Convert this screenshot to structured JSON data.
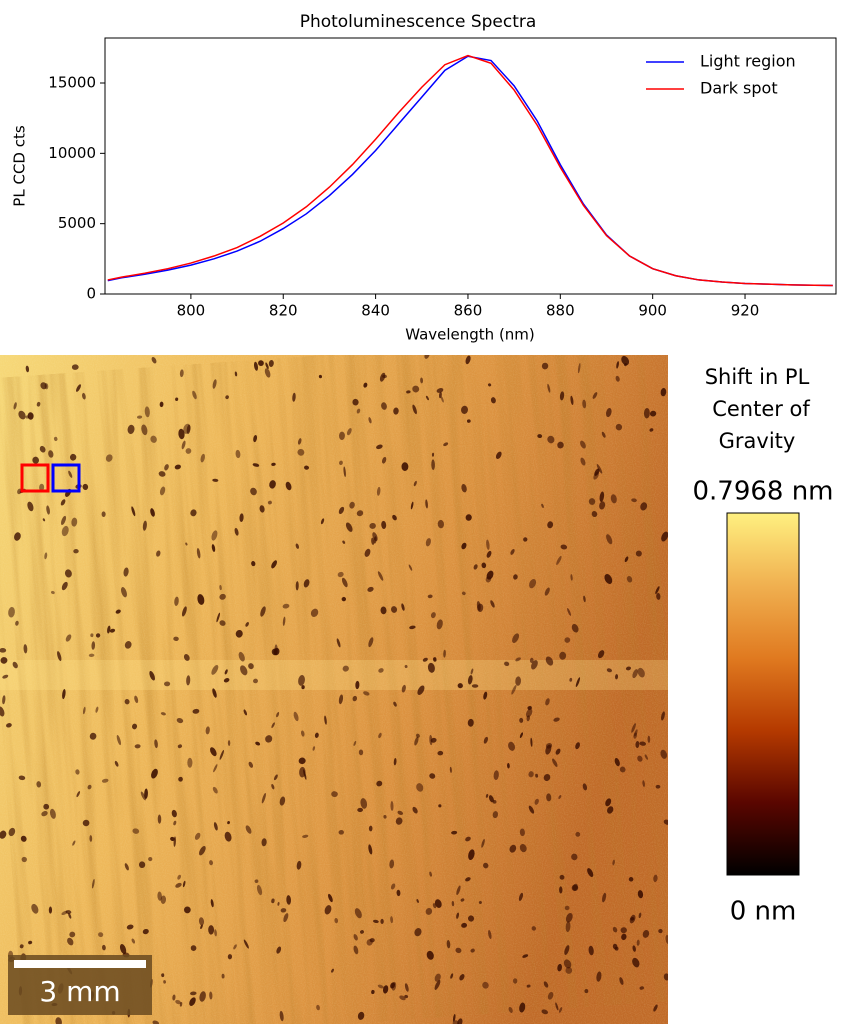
{
  "chart_data": [
    {
      "type": "line",
      "title": "Photoluminescence Spectra",
      "xlabel": "Wavelength (nm)",
      "ylabel": "PL CCD cts",
      "x": [
        782,
        785,
        790,
        795,
        800,
        805,
        810,
        815,
        820,
        825,
        830,
        835,
        840,
        845,
        850,
        855,
        860,
        865,
        870,
        875,
        880,
        885,
        890,
        895,
        900,
        905,
        910,
        915,
        920,
        925,
        930,
        935,
        939
      ],
      "series": [
        {
          "name": "Light region",
          "color": "#0000ff",
          "values": [
            950,
            1150,
            1400,
            1700,
            2050,
            2500,
            3050,
            3750,
            4650,
            5700,
            7000,
            8500,
            10200,
            12100,
            14000,
            15900,
            16900,
            16600,
            14800,
            12300,
            9200,
            6400,
            4200,
            2700,
            1800,
            1300,
            1000,
            850,
            750,
            700,
            650,
            620,
            600
          ]
        },
        {
          "name": "Dark spot",
          "color": "#ff0000",
          "values": [
            1000,
            1200,
            1480,
            1800,
            2200,
            2700,
            3300,
            4100,
            5050,
            6200,
            7600,
            9200,
            11000,
            12900,
            14700,
            16300,
            16950,
            16400,
            14500,
            12000,
            9000,
            6300,
            4150,
            2700,
            1800,
            1300,
            1000,
            850,
            750,
            700,
            650,
            620,
            600
          ]
        }
      ],
      "xlim": [
        781.4,
        939.7
      ],
      "ylim": [
        0,
        18200
      ],
      "xticks": [
        800,
        820,
        840,
        860,
        880,
        900,
        920
      ],
      "yticks": [
        0,
        5000,
        10000,
        15000
      ],
      "legend": "upper right",
      "grid": false
    },
    {
      "type": "heatmap",
      "colorbar_title": [
        "Shift in PL",
        "Center of",
        "Gravity"
      ],
      "clim": [
        0,
        0.7968
      ],
      "cticks": [
        {
          "value": 0.7968,
          "label": "0.7968 nm"
        },
        {
          "value": 0,
          "label": "0 nm"
        }
      ],
      "colormap": [
        "#000000",
        "#5a0600",
        "#b53a00",
        "#e07a20",
        "#f0b050",
        "#fff080"
      ],
      "scale_bar": "3 mm"
    }
  ]
}
